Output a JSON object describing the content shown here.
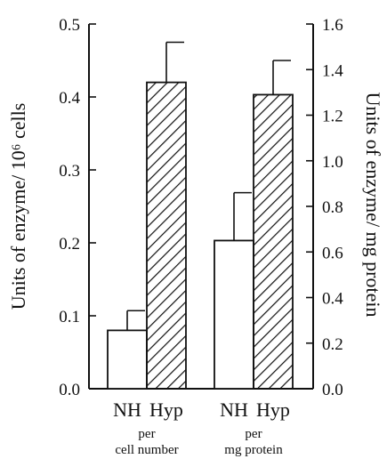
{
  "chart_data": {
    "type": "bar",
    "title": "",
    "ylabel_left": "Units of enzyme/ 10⁶ cells",
    "ylabel_right": "Units of enzyme/ mg protein",
    "ylim_left": [
      0,
      0.5
    ],
    "ylim_right": [
      0,
      1.6
    ],
    "yticks_left": [
      "0.0",
      "0.1",
      "0.2",
      "0.3",
      "0.4",
      "0.5"
    ],
    "yticks_right": [
      "0.0",
      "0.2",
      "0.4",
      "0.6",
      "0.8",
      "1.0",
      "1.2",
      "1.4",
      "1.6"
    ],
    "grid": false,
    "legend": "none",
    "groups": [
      {
        "label_line1": "per",
        "label_line2": "cell number",
        "axis": "left",
        "bars": [
          {
            "category": "NH",
            "value": 0.08,
            "error": 0.027,
            "fill": "open"
          },
          {
            "category": "Hyp",
            "value": 0.42,
            "error": 0.055,
            "fill": "hatched"
          }
        ]
      },
      {
        "label_line1": "per",
        "label_line2": "mg protein",
        "axis": "right",
        "bars": [
          {
            "category": "NH",
            "value": 0.65,
            "error": 0.21,
            "fill": "open"
          },
          {
            "category": "Hyp",
            "value": 1.29,
            "error": 0.15,
            "fill": "hatched"
          }
        ]
      }
    ]
  },
  "colors": {
    "ink": "#111111",
    "background": "#ffffff"
  }
}
